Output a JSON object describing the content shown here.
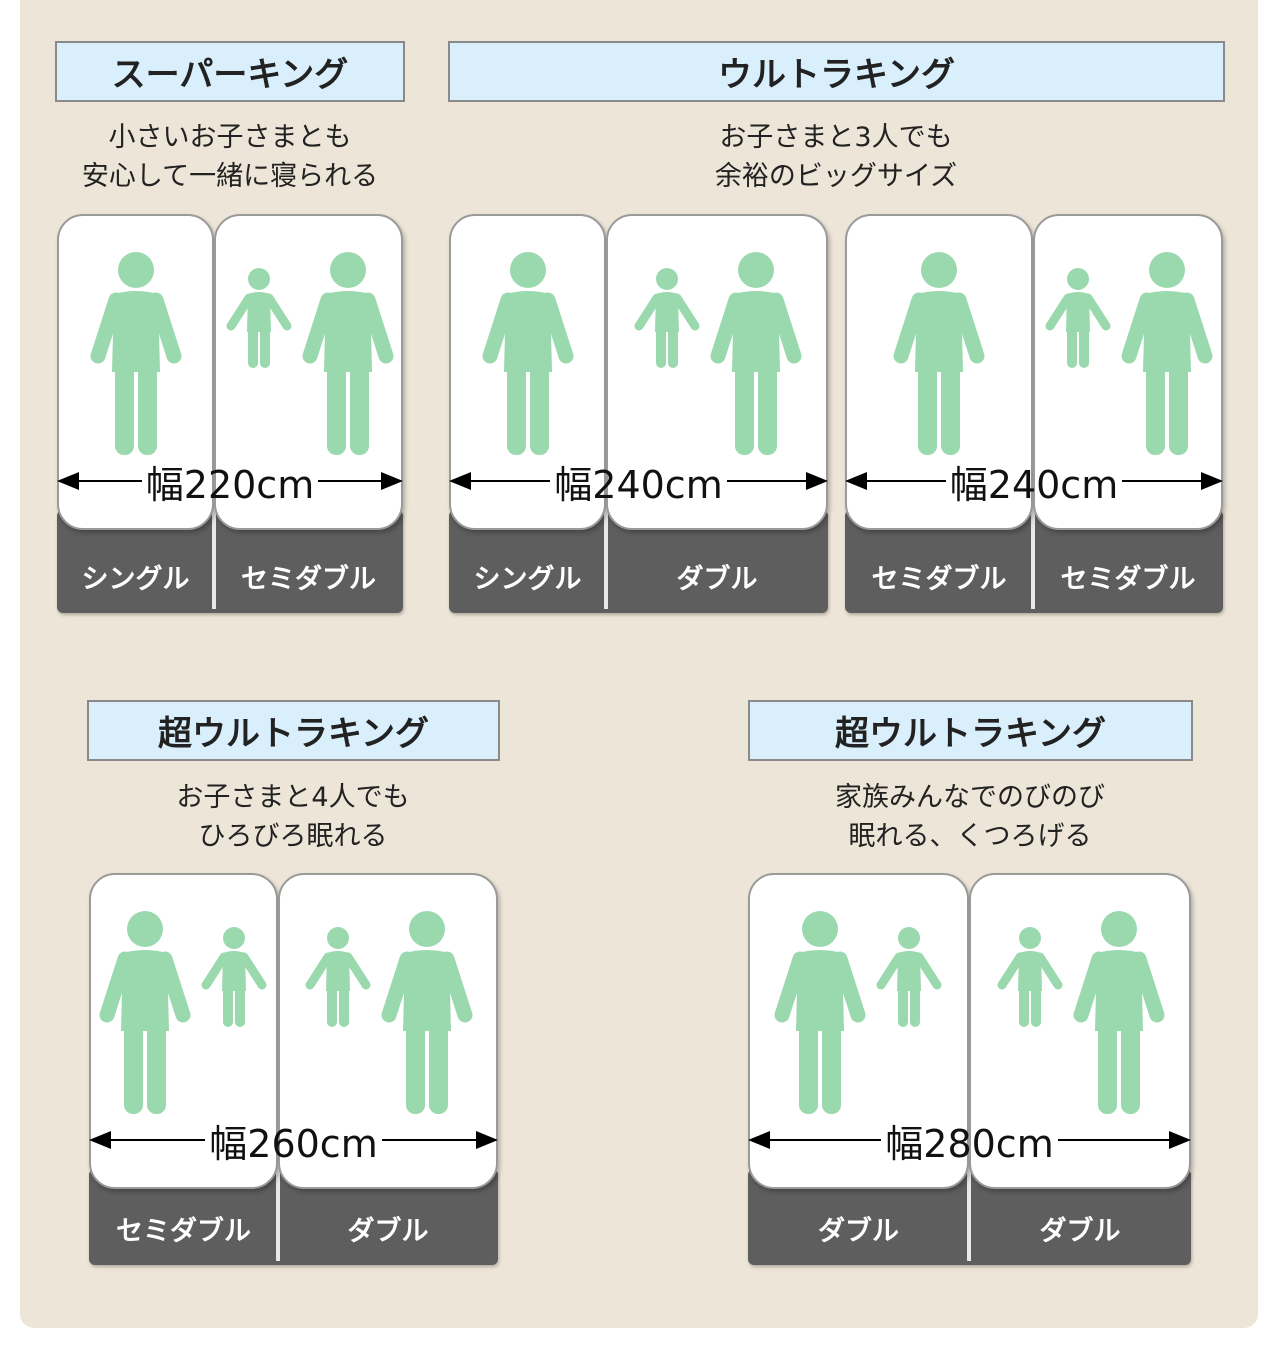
{
  "colors": {
    "background": "#ede5d7",
    "title_bg": "#d9effc",
    "figure": "#9ad9ae",
    "base": "#5e5e5e"
  },
  "groups": [
    {
      "title": "スーパーキング",
      "subtitle": [
        "小さいお子さまとも",
        "安心して一緒に寝られる"
      ]
    },
    {
      "title": "ウルトラキング",
      "subtitle": [
        "お子さまと3人でも",
        "余裕のビッグサイズ"
      ]
    },
    {
      "title": "超ウルトラキング",
      "subtitle": [
        "お子さまと4人でも",
        "ひろびろ眠れる"
      ]
    },
    {
      "title": "超ウルトラキング",
      "subtitle": [
        "家族みんなでのびのび",
        "眠れる、くつろげる"
      ]
    }
  ],
  "beds": [
    {
      "width_label": "幅220cm",
      "mattresses": [
        {
          "label": "シングル",
          "people": [
            "adult"
          ]
        },
        {
          "label": "セミダブル",
          "people": [
            "child",
            "adult"
          ]
        }
      ]
    },
    {
      "width_label": "幅240cm",
      "mattresses": [
        {
          "label": "シングル",
          "people": [
            "adult"
          ]
        },
        {
          "label": "ダブル",
          "people": [
            "child",
            "adult"
          ]
        }
      ]
    },
    {
      "width_label": "幅240cm",
      "mattresses": [
        {
          "label": "セミダブル",
          "people": [
            "adult"
          ]
        },
        {
          "label": "セミダブル",
          "people": [
            "child",
            "adult"
          ]
        }
      ]
    },
    {
      "width_label": "幅260cm",
      "mattresses": [
        {
          "label": "セミダブル",
          "people": [
            "adult",
            "child"
          ]
        },
        {
          "label": "ダブル",
          "people": [
            "child",
            "adult"
          ]
        }
      ]
    },
    {
      "width_label": "幅280cm",
      "mattresses": [
        {
          "label": "ダブル",
          "people": [
            "adult",
            "child"
          ]
        },
        {
          "label": "ダブル",
          "people": [
            "child",
            "adult"
          ]
        }
      ]
    }
  ]
}
